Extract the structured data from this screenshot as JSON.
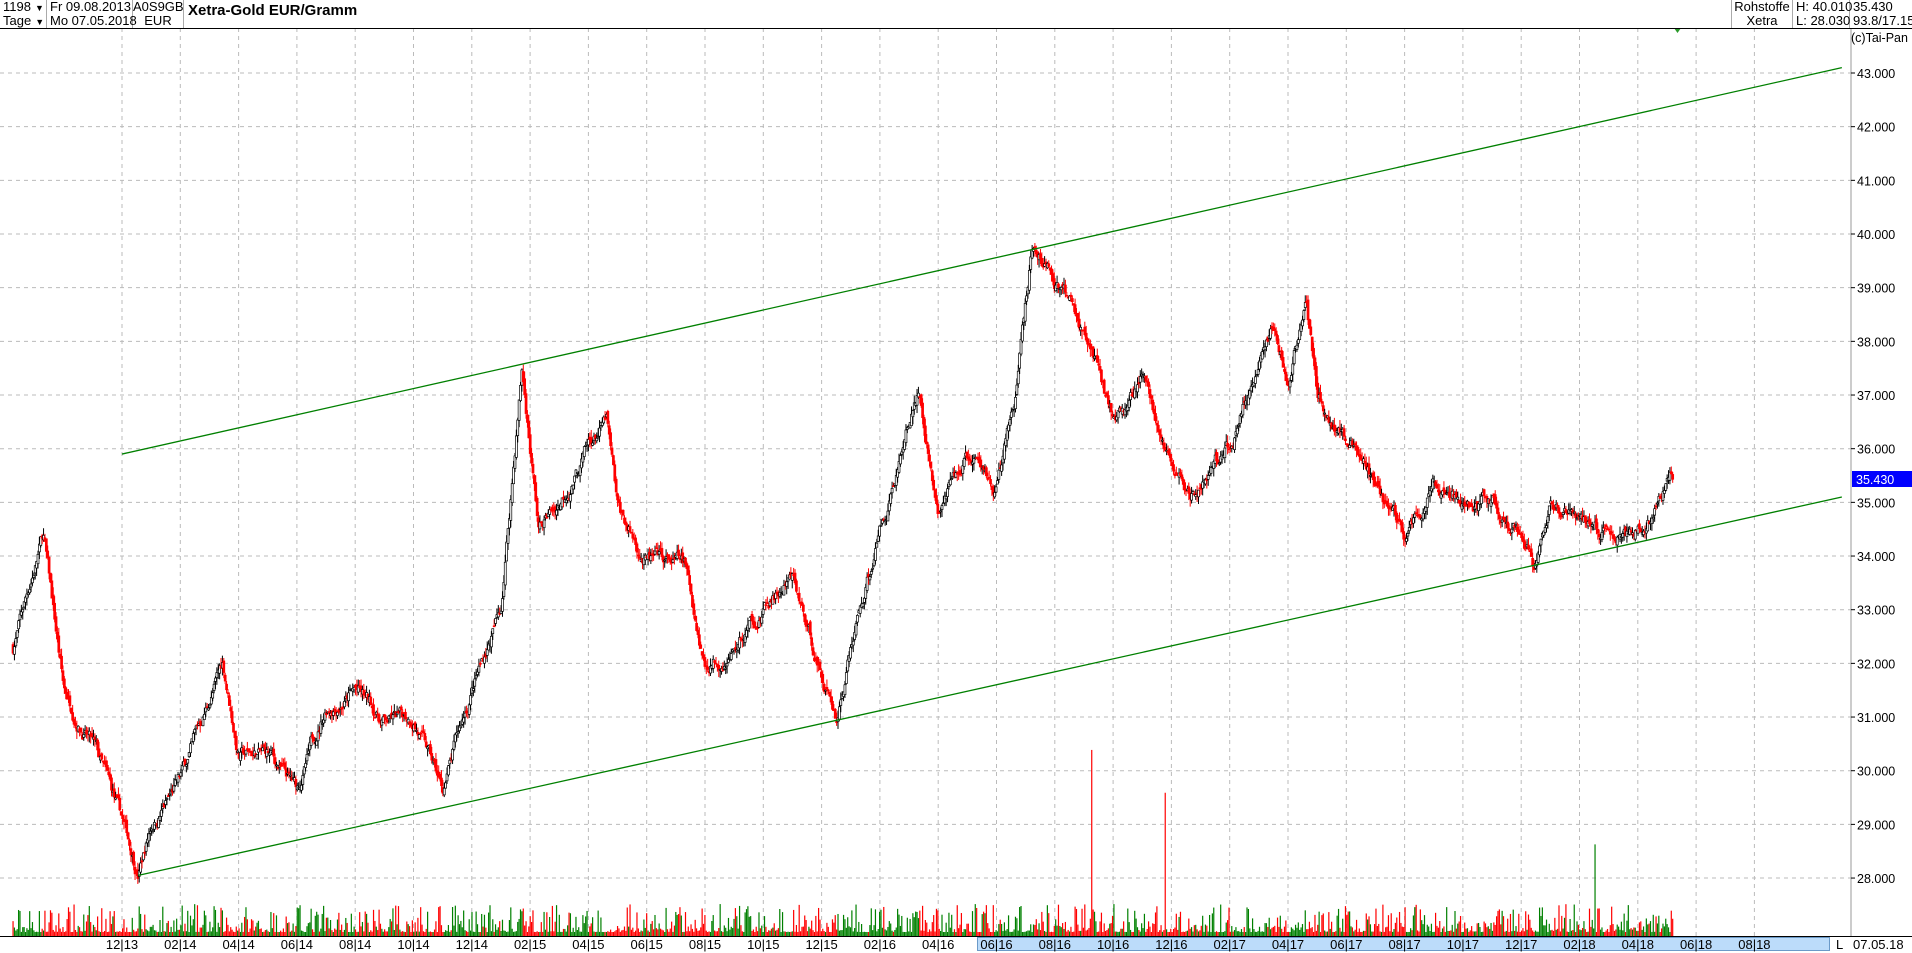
{
  "header": {
    "count": "1198",
    "period": "Tage",
    "from_date": "Fr 09.08.2013",
    "to_date": "Mo 07.05.2018",
    "wkn": "A0S9GB",
    "currency": "EUR",
    "title": "Xetra-Gold EUR/Gramm",
    "group": "Rohstoffe",
    "exchange": "Xetra",
    "high": "H: 40.010",
    "low": "L: 28.030",
    "last": "35.430",
    "ratio": "93.8/17.15"
  },
  "copyright": "(c)Tai-Pan",
  "date_axis": {
    "labels": [
      "12|13",
      "02|14",
      "04|14",
      "06|14",
      "08|14",
      "10|14",
      "12|14",
      "02|15",
      "04|15",
      "06|15",
      "08|15",
      "10|15",
      "12|15",
      "02|16",
      "04|16",
      "06|16",
      "08|16",
      "10|16",
      "12|16",
      "02|17",
      "04|17",
      "06|17",
      "08|17",
      "10|17",
      "12|17",
      "02|18",
      "04|18",
      "06|18",
      "08|18"
    ],
    "scale_marker": "L",
    "end_date": "07.05.18"
  },
  "colors": {
    "up": "#000000",
    "down": "#ff0000",
    "trendline": "#008000",
    "volume_up": "#008000",
    "volume_down": "#ff0000",
    "last_price_bg": "#0000ff",
    "grid": "#bbbbbb",
    "date_band": "#bcdcfa"
  },
  "chart_data": {
    "type": "candlestick",
    "title": "Xetra-Gold EUR/Gramm",
    "y_ticks": [
      "43.000",
      "42.000",
      "41.000",
      "40.000",
      "39.000",
      "38.000",
      "37.000",
      "36.000",
      "35.000",
      "34.000",
      "33.000",
      "32.000",
      "31.000",
      "30.000",
      "29.000",
      "28.000"
    ],
    "ylim": [
      28,
      43
    ],
    "last_price_label": "35.430",
    "grid": true,
    "series": [
      {
        "points": [
          [
            "2013-08-09",
            32.3
          ],
          [
            "2013-09-10",
            34.4
          ],
          [
            "2013-10-01",
            31.5
          ],
          [
            "2013-11-01",
            30.5
          ],
          [
            "2013-12-01",
            29.0
          ],
          [
            "2013-12-18",
            28.1
          ],
          [
            "2014-01-01",
            29.0
          ],
          [
            "2014-02-01",
            29.8
          ],
          [
            "2014-03-15",
            32.0
          ],
          [
            "2014-04-01",
            30.3
          ],
          [
            "2014-05-01",
            30.3
          ],
          [
            "2014-06-01",
            29.6
          ],
          [
            "2014-07-01",
            31.2
          ],
          [
            "2014-08-01",
            31.5
          ],
          [
            "2014-09-01",
            30.9
          ],
          [
            "2014-10-01",
            31.0
          ],
          [
            "2014-11-01",
            29.6
          ],
          [
            "2014-12-01",
            31.5
          ],
          [
            "2015-01-01",
            33.0
          ],
          [
            "2015-01-23",
            37.5
          ],
          [
            "2015-02-10",
            34.5
          ],
          [
            "2015-03-01",
            35.0
          ],
          [
            "2015-04-01",
            36.0
          ],
          [
            "2015-04-20",
            36.5
          ],
          [
            "2015-05-01",
            34.8
          ],
          [
            "2015-06-01",
            33.9
          ],
          [
            "2015-07-10",
            33.8
          ],
          [
            "2015-08-01",
            32.0
          ],
          [
            "2015-09-01",
            32.3
          ],
          [
            "2015-10-01",
            33.0
          ],
          [
            "2015-11-01",
            33.5
          ],
          [
            "2015-12-01",
            31.8
          ],
          [
            "2015-12-17",
            31.0
          ],
          [
            "2016-01-01",
            32.3
          ],
          [
            "2016-02-01",
            34.5
          ],
          [
            "2016-03-10",
            37.0
          ],
          [
            "2016-04-01",
            34.8
          ],
          [
            "2016-05-01",
            35.8
          ],
          [
            "2016-06-01",
            35.3
          ],
          [
            "2016-06-20",
            37.0
          ],
          [
            "2016-07-08",
            39.9
          ],
          [
            "2016-08-01",
            39.0
          ],
          [
            "2016-09-01",
            38.3
          ],
          [
            "2016-10-01",
            36.5
          ],
          [
            "2016-11-01",
            37.3
          ],
          [
            "2016-12-01",
            35.5
          ],
          [
            "2016-12-20",
            35.0
          ],
          [
            "2017-01-01",
            35.3
          ],
          [
            "2017-02-01",
            36.0
          ],
          [
            "2017-03-01",
            37.5
          ],
          [
            "2017-03-15",
            38.3
          ],
          [
            "2017-04-01",
            37.2
          ],
          [
            "2017-04-20",
            38.9
          ],
          [
            "2017-05-01",
            37.0
          ],
          [
            "2017-06-01",
            36.2
          ],
          [
            "2017-07-01",
            35.5
          ],
          [
            "2017-08-01",
            34.3
          ],
          [
            "2017-09-01",
            35.3
          ],
          [
            "2017-10-01",
            35.0
          ],
          [
            "2017-11-01",
            35.0
          ],
          [
            "2017-12-01",
            34.5
          ],
          [
            "2017-12-15",
            33.9
          ],
          [
            "2018-01-01",
            35.0
          ],
          [
            "2018-02-01",
            34.8
          ],
          [
            "2018-03-01",
            34.5
          ],
          [
            "2018-04-01",
            34.4
          ],
          [
            "2018-04-15",
            34.8
          ],
          [
            "2018-05-07",
            35.43
          ]
        ]
      }
    ],
    "trendlines": [
      {
        "from": [
          "2013-12-01",
          35.9
        ],
        "to": [
          "2018-11-01",
          43.1
        ]
      },
      {
        "from": [
          "2013-12-18",
          28.05
        ],
        "to": [
          "2018-11-01",
          35.1
        ]
      }
    ]
  }
}
